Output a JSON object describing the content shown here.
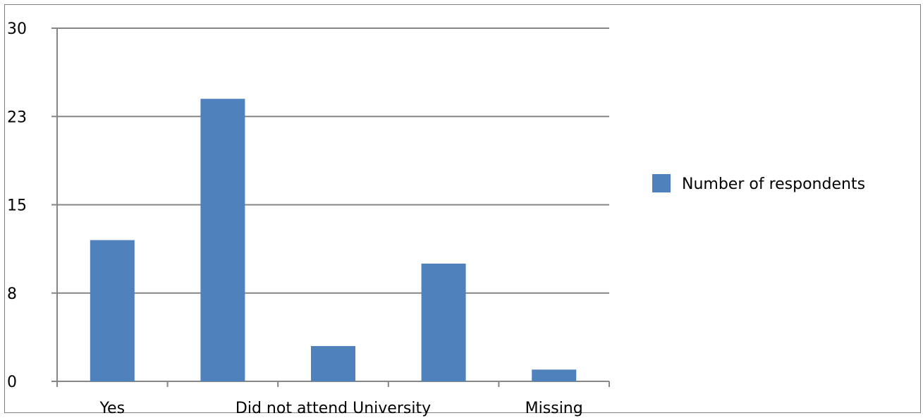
{
  "chart_data": {
    "type": "bar",
    "categories": [
      "Yes",
      "",
      "Did not attend University",
      "",
      "Missing"
    ],
    "x_tick_labels": [
      {
        "index": 0,
        "text": "Yes"
      },
      {
        "index": 2,
        "text": "Did not attend University"
      },
      {
        "index": 4,
        "text": "Missing"
      }
    ],
    "series": [
      {
        "name": "Number of respondents",
        "values": [
          12,
          24,
          3,
          10,
          1
        ],
        "color": "#4f81bd"
      }
    ],
    "ylim": [
      0,
      30
    ],
    "y_ticks": [
      {
        "value": 0,
        "label": "0"
      },
      {
        "value": 7.5,
        "label": "8"
      },
      {
        "value": 15,
        "label": "15"
      },
      {
        "value": 22.5,
        "label": "23"
      },
      {
        "value": 30,
        "label": "30"
      }
    ],
    "grid": true,
    "legend_position": "right",
    "title": "",
    "xlabel": "",
    "ylabel": ""
  }
}
